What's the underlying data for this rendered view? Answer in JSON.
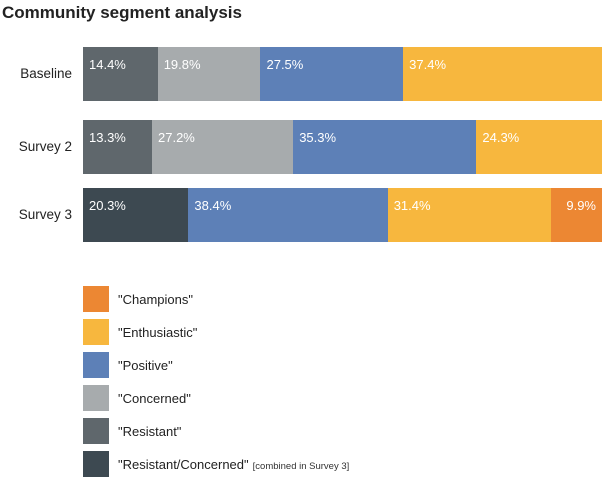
{
  "chart_data": {
    "type": "bar",
    "orientation": "horizontal",
    "stacked": true,
    "title": "Community segment analysis",
    "categories": [
      "Baseline",
      "Survey 2",
      "Survey 3"
    ],
    "series": [
      {
        "name": "\"Resistant/Concerned\"",
        "key": "resistant_concerned",
        "color": "#3d4951",
        "values": [
          null,
          null,
          20.3
        ]
      },
      {
        "name": "\"Resistant\"",
        "key": "resistant",
        "color": "#5f676c",
        "values": [
          14.4,
          13.3,
          null
        ]
      },
      {
        "name": "\"Concerned\"",
        "key": "concerned",
        "color": "#a7abad",
        "values": [
          19.8,
          27.2,
          null
        ]
      },
      {
        "name": "\"Positive\"",
        "key": "positive",
        "color": "#5d80b7",
        "values": [
          27.5,
          35.3,
          38.4
        ]
      },
      {
        "name": "\"Enthusiastic\"",
        "key": "enthusiastic",
        "color": "#f7b73e",
        "values": [
          37.4,
          24.3,
          31.4
        ]
      },
      {
        "name": "\"Champions\"",
        "key": "champions",
        "color": "#ec8733",
        "values": [
          null,
          null,
          9.9
        ]
      }
    ],
    "value_suffix": "%",
    "xlim": [
      0,
      100
    ],
    "legend": [
      {
        "label": "\"Champions\"",
        "key": "champions",
        "color": "#ec8733",
        "note": ""
      },
      {
        "label": "\"Enthusiastic\"",
        "key": "enthusiastic",
        "color": "#f7b73e",
        "note": ""
      },
      {
        "label": "\"Positive\"",
        "key": "positive",
        "color": "#5d80b7",
        "note": ""
      },
      {
        "label": "\"Concerned\"",
        "key": "concerned",
        "color": "#a7abad",
        "note": ""
      },
      {
        "label": "\"Resistant\"",
        "key": "resistant",
        "color": "#5f676c",
        "note": ""
      },
      {
        "label": "\"Resistant/Concerned\"",
        "key": "resistant_concerned",
        "color": "#3d4951",
        "note": "[combined in Survey 3]"
      }
    ],
    "legend_position": "bottom-left"
  }
}
